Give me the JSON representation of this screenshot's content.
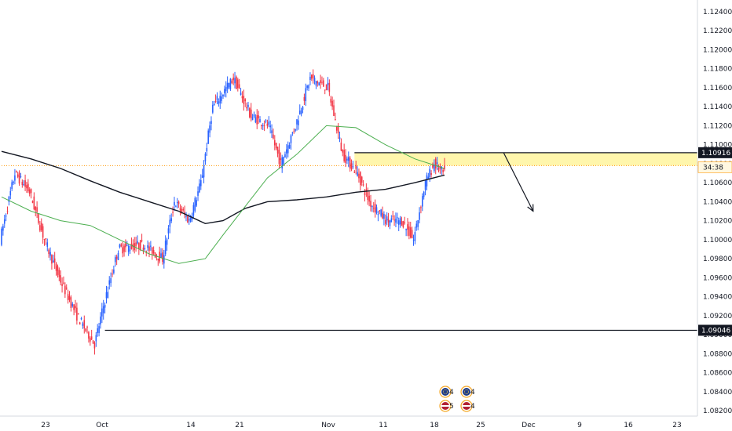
{
  "chart_data": {
    "type": "candlestick",
    "title": "",
    "xlabel": "",
    "ylabel": "",
    "ylim": [
      1.0815,
      1.1265
    ],
    "x_ticks": [
      "23",
      "Oct",
      "14",
      "21",
      "Nov",
      "11",
      "18",
      "25",
      "Dec",
      "9",
      "16",
      "23"
    ],
    "y_ticks": [
      "1.12400",
      "1.12200",
      "1.12000",
      "1.11800",
      "1.11600",
      "1.11400",
      "1.11200",
      "1.11000",
      "1.10800",
      "1.10600",
      "1.10400",
      "1.10200",
      "1.10000",
      "1.09800",
      "1.09600",
      "1.09400",
      "1.09200",
      "1.09000",
      "1.08800",
      "1.08600",
      "1.08400",
      "1.08200"
    ],
    "candle_anchors": [
      [
        0,
        1.1
      ],
      [
        10,
        1.107
      ],
      [
        20,
        1.105
      ],
      [
        30,
        1.1
      ],
      [
        40,
        1.096
      ],
      [
        52,
        1.092
      ],
      [
        64,
        1.089
      ],
      [
        70,
        1.093
      ],
      [
        80,
        1.099
      ],
      [
        96,
        1.0995
      ],
      [
        110,
        1.098
      ],
      [
        118,
        1.104
      ],
      [
        128,
        1.102
      ],
      [
        136,
        1.106
      ],
      [
        144,
        1.114
      ],
      [
        158,
        1.117
      ],
      [
        170,
        1.113
      ],
      [
        182,
        1.112
      ],
      [
        190,
        1.108
      ],
      [
        200,
        1.112
      ],
      [
        210,
        1.117
      ],
      [
        222,
        1.116
      ],
      [
        232,
        1.109
      ],
      [
        242,
        1.107
      ],
      [
        250,
        1.104
      ],
      [
        262,
        1.102
      ],
      [
        272,
        1.102
      ],
      [
        280,
        1.1
      ],
      [
        288,
        1.106
      ],
      [
        294,
        1.108
      ],
      [
        300,
        1.107
      ]
    ],
    "last_candle": {
      "open": 1.1078,
      "high": 1.1086,
      "low": 1.1072,
      "close": 1.1074
    },
    "series": [
      {
        "type": "moving-average-black",
        "color": "#131722",
        "points": [
          [
            0,
            1.1093
          ],
          [
            20,
            1.1085
          ],
          [
            40,
            1.1075
          ],
          [
            60,
            1.1062
          ],
          [
            80,
            1.105
          ],
          [
            100,
            1.104
          ],
          [
            120,
            1.103
          ],
          [
            138,
            1.1017
          ],
          [
            150,
            1.102
          ],
          [
            165,
            1.1033
          ],
          [
            180,
            1.104
          ],
          [
            200,
            1.1042
          ],
          [
            220,
            1.1045
          ],
          [
            240,
            1.105
          ],
          [
            260,
            1.1053
          ],
          [
            280,
            1.106
          ],
          [
            300,
            1.1068
          ]
        ]
      },
      {
        "type": "moving-average-green",
        "color": "#4caf50",
        "points": [
          [
            0,
            1.1045
          ],
          [
            20,
            1.103
          ],
          [
            40,
            1.102
          ],
          [
            60,
            1.1015
          ],
          [
            80,
            1.1
          ],
          [
            100,
            1.0985
          ],
          [
            120,
            1.0975
          ],
          [
            138,
            1.098
          ],
          [
            150,
            1.1005
          ],
          [
            165,
            1.1035
          ],
          [
            180,
            1.1065
          ],
          [
            200,
            1.109
          ],
          [
            220,
            1.112
          ],
          [
            240,
            1.1118
          ],
          [
            260,
            1.11
          ],
          [
            280,
            1.1085
          ],
          [
            300,
            1.1075
          ]
        ]
      }
    ],
    "levels": [
      {
        "label": "1.10916",
        "value": 1.10916,
        "color": "#131722",
        "style": "solid",
        "from": 239
      },
      {
        "label": "1.09046",
        "value": 1.09046,
        "color": "#131722",
        "style": "solid",
        "from": 70
      },
      {
        "value": 1.1078,
        "color": "#ff9800",
        "style": "dotted",
        "from": 0
      }
    ],
    "zone": {
      "top": 1.10916,
      "bottom": 1.1078,
      "from": 239,
      "color": "#fff59d"
    },
    "current_price_label": "34:38",
    "arrow": {
      "from": [
        340,
        1.10916
      ],
      "to": [
        360,
        1.103
      ],
      "color": "#131722"
    },
    "event_badges": [
      {
        "text": "4"
      },
      {
        "text": "4"
      },
      {
        "text": "5"
      },
      {
        "text": "4"
      }
    ],
    "colors": {
      "up": "#2962ff",
      "down": "#f23645",
      "background": "#ffffff",
      "zone": "#fff59d"
    }
  }
}
